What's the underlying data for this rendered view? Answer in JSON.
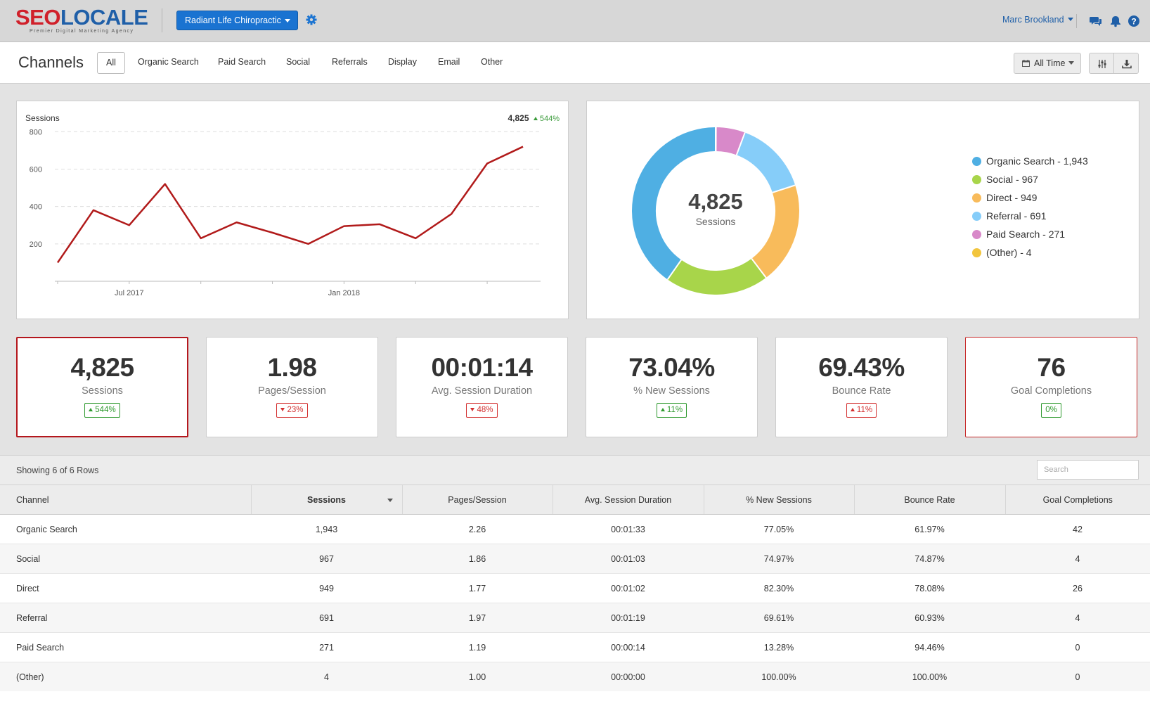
{
  "header": {
    "logo_seo": "SEO",
    "logo_locale": "LOCALE",
    "logo_tagline": "Premier Digital Marketing Agency",
    "client_name": "Radiant Life Chiropractic",
    "user_name": "Marc Brookland"
  },
  "channel_bar": {
    "title": "Channels",
    "tabs": [
      "All",
      "Organic Search",
      "Paid Search",
      "Social",
      "Referrals",
      "Display",
      "Email",
      "Other"
    ],
    "active_tab": "All",
    "date_range": "All Time"
  },
  "colors": {
    "line": "#b11a1a",
    "organic_search": "#4fafe3",
    "social": "#a8d54a",
    "direct": "#f8bb5b",
    "referral": "#86cdf9",
    "paid_search": "#d889c9",
    "other": "#f2c53d"
  },
  "line_chart": {
    "title": "Sessions",
    "total": "4,825",
    "change": "544%"
  },
  "chart_data": [
    {
      "type": "line",
      "title": "Sessions",
      "x": [
        "2017-05",
        "2017-06",
        "2017-07",
        "2017-08",
        "2017-09",
        "2017-10",
        "2017-11",
        "2017-12",
        "2018-01",
        "2018-02",
        "2018-03",
        "2018-04",
        "2018-05",
        "2018-06"
      ],
      "series": [
        {
          "values": [
            100,
            380,
            300,
            520,
            230,
            315,
            260,
            200,
            295,
            305,
            230,
            360,
            630,
            720
          ]
        }
      ],
      "x_tick_labels": [
        "Jul 2017",
        "Jan 2018"
      ],
      "y_ticks": [
        200,
        400,
        600,
        800
      ],
      "ylim": [
        0,
        850
      ],
      "grid": true
    },
    {
      "type": "pie",
      "title": "Sessions",
      "total": "4,825",
      "slices": [
        {
          "label": "Organic Search",
          "value": 1943,
          "color": "#4fafe3"
        },
        {
          "label": "Social",
          "value": 967,
          "color": "#a8d54a"
        },
        {
          "label": "Direct",
          "value": 949,
          "color": "#f8bb5b"
        },
        {
          "label": "Referral",
          "value": 691,
          "color": "#86cdf9"
        },
        {
          "label": "Paid Search",
          "value": 271,
          "color": "#d889c9"
        },
        {
          "label": "(Other)",
          "value": 4,
          "color": "#f2c53d"
        }
      ],
      "legend_position": "right"
    }
  ],
  "donut": {
    "total": "4,825",
    "label": "Sessions",
    "legend": [
      "Organic Search - 1,943",
      "Social - 967",
      "Direct - 949",
      "Referral - 691",
      "Paid Search - 271",
      "(Other) - 4"
    ]
  },
  "kpis": [
    {
      "value": "4,825",
      "label": "Sessions",
      "change": "544%",
      "direction": "up",
      "status": "green"
    },
    {
      "value": "1.98",
      "label": "Pages/Session",
      "change": "23%",
      "direction": "down",
      "status": "red"
    },
    {
      "value": "00:01:14",
      "label": "Avg. Session Duration",
      "change": "48%",
      "direction": "down",
      "status": "red"
    },
    {
      "value": "73.04%",
      "label": "% New Sessions",
      "change": "11%",
      "direction": "up",
      "status": "green"
    },
    {
      "value": "69.43%",
      "label": "Bounce Rate",
      "change": "11%",
      "direction": "up",
      "status": "red"
    },
    {
      "value": "76",
      "label": "Goal Completions",
      "change": "0%",
      "direction": "none",
      "status": "green"
    }
  ],
  "table": {
    "showing": "Showing 6 of 6 Rows",
    "search_placeholder": "Search",
    "columns": [
      "Channel",
      "Sessions",
      "Pages/Session",
      "Avg. Session Duration",
      "% New Sessions",
      "Bounce Rate",
      "Goal Completions"
    ],
    "rows": [
      [
        "Organic Search",
        "1,943",
        "2.26",
        "00:01:33",
        "77.05%",
        "61.97%",
        "42"
      ],
      [
        "Social",
        "967",
        "1.86",
        "00:01:03",
        "74.97%",
        "74.87%",
        "4"
      ],
      [
        "Direct",
        "949",
        "1.77",
        "00:01:02",
        "82.30%",
        "78.08%",
        "26"
      ],
      [
        "Referral",
        "691",
        "1.97",
        "00:01:19",
        "69.61%",
        "60.93%",
        "4"
      ],
      [
        "Paid Search",
        "271",
        "1.19",
        "00:00:14",
        "13.28%",
        "94.46%",
        "0"
      ],
      [
        "(Other)",
        "4",
        "1.00",
        "00:00:00",
        "100.00%",
        "100.00%",
        "0"
      ]
    ]
  }
}
